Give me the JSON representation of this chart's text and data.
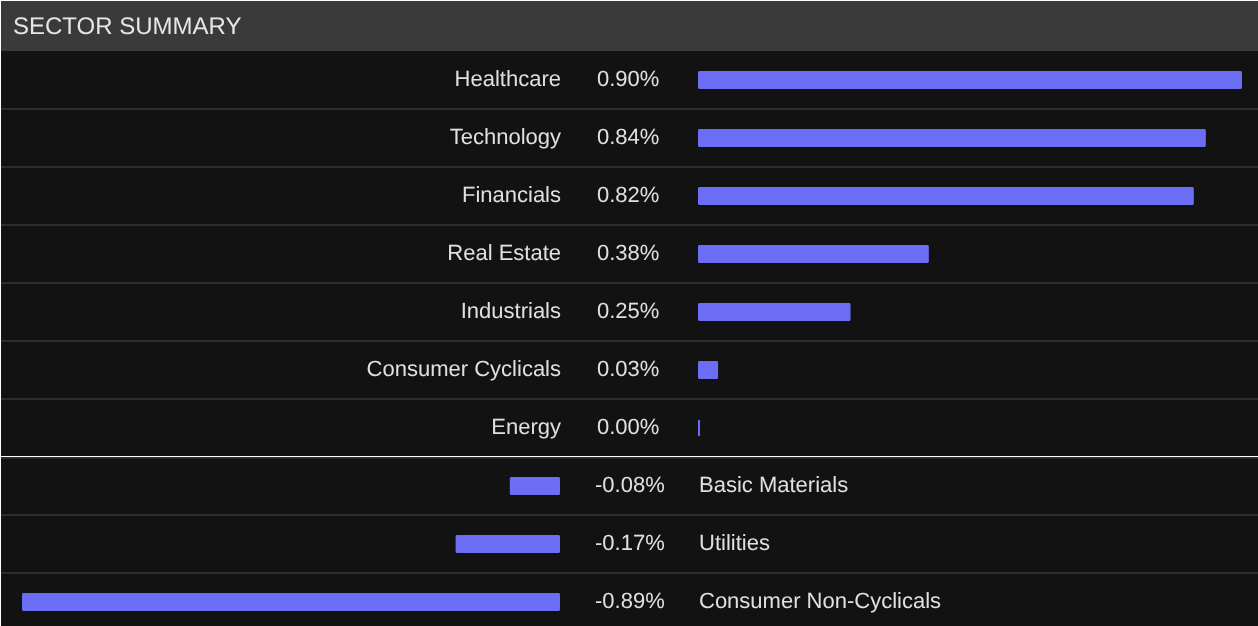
{
  "chart_data": [
    {
      "type": "bar",
      "orientation": "horizontal",
      "title": "SECTOR SUMMARY",
      "color": "#6b6ef5",
      "categories": [
        "Healthcare",
        "Technology",
        "Financials",
        "Real Estate",
        "Industrials",
        "Consumer Cyclicals",
        "Energy"
      ],
      "values": [
        0.9,
        0.84,
        0.82,
        0.38,
        0.25,
        0.03,
        0.0
      ],
      "value_labels": [
        "0.90%",
        "0.84%",
        "0.82%",
        "0.38%",
        "0.25%",
        "0.03%",
        "0.00%"
      ]
    },
    {
      "type": "bar",
      "orientation": "horizontal",
      "color": "#6b6ef5",
      "categories": [
        "Basic Materials",
        "Utilities",
        "Consumer Non-Cyclicals"
      ],
      "values": [
        -0.08,
        -0.17,
        -0.89
      ],
      "value_labels": [
        "-0.08%",
        "-0.17%",
        "-0.89%"
      ]
    }
  ]
}
